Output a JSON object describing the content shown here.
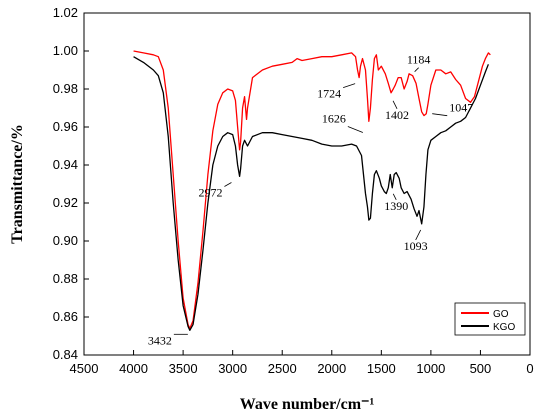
{
  "chart_data": {
    "type": "line",
    "xlabel": "Wave number/cm⁻¹",
    "ylabel": "Transmittance/%",
    "xlim": [
      4500,
      0
    ],
    "ylim": [
      0.84,
      1.02
    ],
    "x_ticks": [
      4500,
      4000,
      3500,
      3000,
      2500,
      2000,
      1500,
      1000,
      500,
      0
    ],
    "y_ticks": [
      "0.84",
      "0.86",
      "0.88",
      "0.90",
      "0.92",
      "0.94",
      "0.96",
      "0.98",
      "1.00",
      "1.02"
    ],
    "grid": false,
    "legend_position": "bottom-right",
    "series": [
      {
        "name": "GO",
        "color": "#ff0000",
        "points": [
          [
            4000,
            1.0
          ],
          [
            3900,
            0.999
          ],
          [
            3800,
            0.998
          ],
          [
            3750,
            0.997
          ],
          [
            3700,
            0.99
          ],
          [
            3650,
            0.97
          ],
          [
            3600,
            0.935
          ],
          [
            3550,
            0.9
          ],
          [
            3500,
            0.87
          ],
          [
            3450,
            0.856
          ],
          [
            3432,
            0.854
          ],
          [
            3400,
            0.858
          ],
          [
            3350,
            0.878
          ],
          [
            3300,
            0.905
          ],
          [
            3250,
            0.935
          ],
          [
            3200,
            0.958
          ],
          [
            3150,
            0.972
          ],
          [
            3100,
            0.978
          ],
          [
            3050,
            0.98
          ],
          [
            3000,
            0.979
          ],
          [
            2972,
            0.974
          ],
          [
            2950,
            0.96
          ],
          [
            2930,
            0.948
          ],
          [
            2920,
            0.952
          ],
          [
            2900,
            0.97
          ],
          [
            2880,
            0.976
          ],
          [
            2860,
            0.964
          ],
          [
            2850,
            0.97
          ],
          [
            2800,
            0.986
          ],
          [
            2700,
            0.99
          ],
          [
            2600,
            0.992
          ],
          [
            2500,
            0.993
          ],
          [
            2400,
            0.994
          ],
          [
            2350,
            0.996
          ],
          [
            2300,
            0.995
          ],
          [
            2200,
            0.996
          ],
          [
            2100,
            0.997
          ],
          [
            2000,
            0.997
          ],
          [
            1900,
            0.998
          ],
          [
            1800,
            0.999
          ],
          [
            1760,
            0.997
          ],
          [
            1740,
            0.99
          ],
          [
            1724,
            0.986
          ],
          [
            1710,
            0.992
          ],
          [
            1690,
            0.996
          ],
          [
            1660,
            0.99
          ],
          [
            1640,
            0.975
          ],
          [
            1626,
            0.963
          ],
          [
            1610,
            0.97
          ],
          [
            1590,
            0.985
          ],
          [
            1570,
            0.996
          ],
          [
            1550,
            0.998
          ],
          [
            1530,
            0.99
          ],
          [
            1500,
            0.992
          ],
          [
            1460,
            0.988
          ],
          [
            1430,
            0.983
          ],
          [
            1402,
            0.978
          ],
          [
            1380,
            0.98
          ],
          [
            1360,
            0.982
          ],
          [
            1330,
            0.986
          ],
          [
            1300,
            0.986
          ],
          [
            1270,
            0.98
          ],
          [
            1240,
            0.984
          ],
          [
            1220,
            0.988
          ],
          [
            1184,
            0.987
          ],
          [
            1150,
            0.983
          ],
          [
            1120,
            0.975
          ],
          [
            1093,
            0.968
          ],
          [
            1070,
            0.966
          ],
          [
            1047,
            0.967
          ],
          [
            1030,
            0.972
          ],
          [
            1000,
            0.982
          ],
          [
            950,
            0.99
          ],
          [
            900,
            0.99
          ],
          [
            850,
            0.988
          ],
          [
            800,
            0.989
          ],
          [
            750,
            0.985
          ],
          [
            700,
            0.982
          ],
          [
            650,
            0.975
          ],
          [
            600,
            0.973
          ],
          [
            560,
            0.976
          ],
          [
            520,
            0.984
          ],
          [
            480,
            0.992
          ],
          [
            450,
            0.996
          ],
          [
            420,
            0.999
          ],
          [
            400,
            0.998
          ]
        ]
      },
      {
        "name": "KGO",
        "color": "#000000",
        "points": [
          [
            4000,
            0.997
          ],
          [
            3900,
            0.994
          ],
          [
            3800,
            0.99
          ],
          [
            3750,
            0.987
          ],
          [
            3700,
            0.978
          ],
          [
            3650,
            0.955
          ],
          [
            3600,
            0.92
          ],
          [
            3550,
            0.89
          ],
          [
            3500,
            0.866
          ],
          [
            3450,
            0.855
          ],
          [
            3432,
            0.853
          ],
          [
            3400,
            0.856
          ],
          [
            3350,
            0.872
          ],
          [
            3300,
            0.895
          ],
          [
            3250,
            0.92
          ],
          [
            3200,
            0.94
          ],
          [
            3150,
            0.95
          ],
          [
            3100,
            0.955
          ],
          [
            3050,
            0.957
          ],
          [
            3000,
            0.956
          ],
          [
            2972,
            0.95
          ],
          [
            2950,
            0.94
          ],
          [
            2930,
            0.934
          ],
          [
            2920,
            0.938
          ],
          [
            2900,
            0.95
          ],
          [
            2880,
            0.953
          ],
          [
            2850,
            0.95
          ],
          [
            2800,
            0.955
          ],
          [
            2700,
            0.957
          ],
          [
            2600,
            0.957
          ],
          [
            2500,
            0.956
          ],
          [
            2400,
            0.955
          ],
          [
            2300,
            0.954
          ],
          [
            2200,
            0.953
          ],
          [
            2100,
            0.951
          ],
          [
            2000,
            0.95
          ],
          [
            1900,
            0.95
          ],
          [
            1800,
            0.951
          ],
          [
            1750,
            0.95
          ],
          [
            1700,
            0.945
          ],
          [
            1680,
            0.935
          ],
          [
            1660,
            0.925
          ],
          [
            1640,
            0.918
          ],
          [
            1626,
            0.911
          ],
          [
            1610,
            0.912
          ],
          [
            1590,
            0.925
          ],
          [
            1570,
            0.935
          ],
          [
            1550,
            0.937
          ],
          [
            1520,
            0.933
          ],
          [
            1500,
            0.929
          ],
          [
            1470,
            0.926
          ],
          [
            1450,
            0.925
          ],
          [
            1430,
            0.928
          ],
          [
            1410,
            0.935
          ],
          [
            1390,
            0.928
          ],
          [
            1370,
            0.935
          ],
          [
            1350,
            0.936
          ],
          [
            1320,
            0.933
          ],
          [
            1300,
            0.928
          ],
          [
            1270,
            0.925
          ],
          [
            1240,
            0.926
          ],
          [
            1200,
            0.922
          ],
          [
            1170,
            0.917
          ],
          [
            1140,
            0.913
          ],
          [
            1120,
            0.916
          ],
          [
            1093,
            0.909
          ],
          [
            1070,
            0.918
          ],
          [
            1050,
            0.935
          ],
          [
            1030,
            0.948
          ],
          [
            1000,
            0.953
          ],
          [
            950,
            0.955
          ],
          [
            900,
            0.957
          ],
          [
            850,
            0.958
          ],
          [
            800,
            0.96
          ],
          [
            750,
            0.962
          ],
          [
            700,
            0.963
          ],
          [
            650,
            0.965
          ],
          [
            600,
            0.97
          ],
          [
            550,
            0.975
          ],
          [
            500,
            0.982
          ],
          [
            450,
            0.989
          ],
          [
            420,
            0.993
          ]
        ]
      }
    ],
    "annotations": [
      {
        "text": "3432",
        "x": 3432,
        "y": 0.853
      },
      {
        "text": "2972",
        "x": 2972,
        "y": 0.935
      },
      {
        "text": "1724",
        "x": 1724,
        "y": 0.986
      },
      {
        "text": "1626",
        "x": 1626,
        "y": 0.955
      },
      {
        "text": "1184",
        "x": 1184,
        "y": 0.987
      },
      {
        "text": "1402",
        "x": 1402,
        "y": 0.978
      },
      {
        "text": "1047",
        "x": 1047,
        "y": 0.967
      },
      {
        "text": "1390",
        "x": 1390,
        "y": 0.928
      },
      {
        "text": "1093",
        "x": 1093,
        "y": 0.909
      }
    ]
  }
}
